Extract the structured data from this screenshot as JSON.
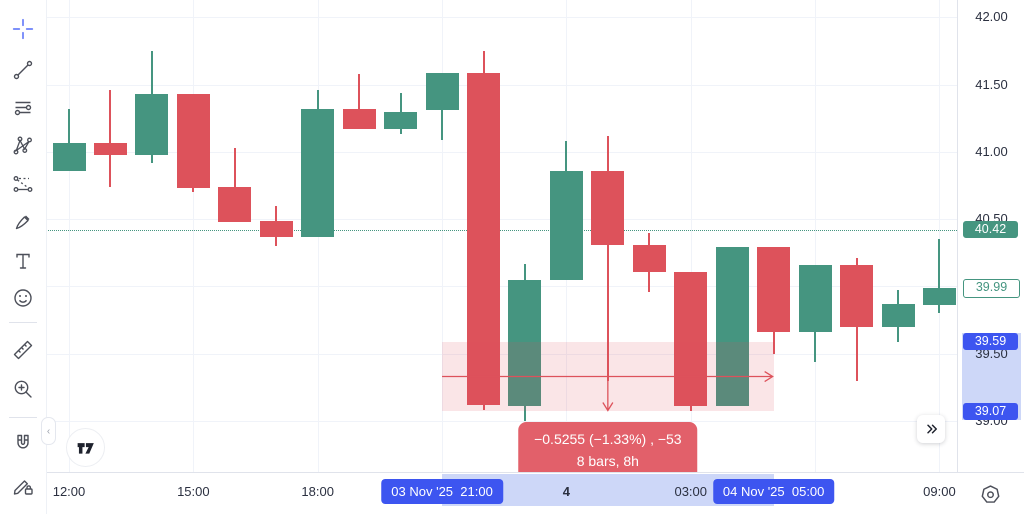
{
  "app": {
    "name": "tradingview-chart"
  },
  "colors": {
    "up": "#459580",
    "down": "#dd525b",
    "blue": "#3d55f0",
    "band": "#cdd7f8",
    "measure_fill": "rgba(221,82,91,0.15)",
    "measure_line": "#dd525b",
    "tooltip_bg": "#e2606a",
    "grid": "#f0f3f9",
    "border": "#e0e3eb",
    "icon": "#4c4f59",
    "icon_active": "#7d90fa",
    "logo": "#1e222d"
  },
  "toolbar": {
    "tools": [
      {
        "id": "crosshair",
        "selected": true
      },
      {
        "id": "trend-line",
        "selected": false
      },
      {
        "id": "fib-retracement",
        "selected": false
      },
      {
        "id": "xabcd-pattern",
        "selected": false
      },
      {
        "id": "projection",
        "selected": false
      },
      {
        "id": "brush",
        "selected": false
      },
      {
        "id": "text",
        "selected": false
      },
      {
        "id": "emoji",
        "selected": false
      },
      {
        "id": "measure",
        "selected": false
      },
      {
        "id": "zoom-in",
        "selected": false
      },
      {
        "id": "magnet",
        "selected": false
      },
      {
        "id": "lock-all-drawings",
        "selected": false
      }
    ]
  },
  "chart_data": {
    "type": "candlestick",
    "interval": "1h",
    "ylim": [
      38.62,
      42.13
    ],
    "grid": true,
    "candles": [
      {
        "t": "12:00",
        "o": 40.86,
        "h": 41.32,
        "l": 40.86,
        "c": 41.07
      },
      {
        "t": "13:00",
        "o": 41.07,
        "h": 41.46,
        "l": 40.74,
        "c": 40.98
      },
      {
        "t": "14:00",
        "o": 40.98,
        "h": 41.75,
        "l": 40.92,
        "c": 41.43
      },
      {
        "t": "15:00",
        "o": 41.43,
        "h": 41.43,
        "l": 40.7,
        "c": 40.73
      },
      {
        "t": "16:00",
        "o": 40.74,
        "h": 41.03,
        "l": 40.48,
        "c": 40.48
      },
      {
        "t": "17:00",
        "o": 40.49,
        "h": 40.6,
        "l": 40.3,
        "c": 40.37
      },
      {
        "t": "18:00",
        "o": 40.37,
        "h": 41.46,
        "l": 40.37,
        "c": 41.32
      },
      {
        "t": "19:00",
        "o": 41.32,
        "h": 41.58,
        "l": 41.17,
        "c": 41.17
      },
      {
        "t": "20:00",
        "o": 41.17,
        "h": 41.44,
        "l": 41.13,
        "c": 41.3
      },
      {
        "t": "21:00",
        "o": 41.31,
        "h": 41.59,
        "l": 41.09,
        "c": 41.59
      },
      {
        "t": "22:00",
        "o": 41.59,
        "h": 41.75,
        "l": 39.08,
        "c": 39.12
      },
      {
        "t": "23:00",
        "o": 39.11,
        "h": 40.17,
        "l": 39.0,
        "c": 40.05
      },
      {
        "t": "00:00",
        "o": 40.05,
        "h": 41.08,
        "l": 40.05,
        "c": 40.86
      },
      {
        "t": "01:00",
        "o": 40.86,
        "h": 41.12,
        "l": 39.3,
        "c": 40.31
      },
      {
        "t": "02:00",
        "o": 40.31,
        "h": 40.4,
        "l": 39.96,
        "c": 40.11
      },
      {
        "t": "03:00",
        "o": 40.11,
        "h": 40.11,
        "l": 39.07,
        "c": 39.11
      },
      {
        "t": "04:00",
        "o": 39.11,
        "h": 40.29,
        "l": 39.11,
        "c": 40.29
      },
      {
        "t": "05:00",
        "o": 40.29,
        "h": 40.29,
        "l": 39.5,
        "c": 39.66
      },
      {
        "t": "06:00",
        "o": 39.66,
        "h": 40.16,
        "l": 39.44,
        "c": 40.16
      },
      {
        "t": "07:00",
        "o": 40.16,
        "h": 40.21,
        "l": 39.3,
        "c": 39.7
      },
      {
        "t": "08:00",
        "o": 39.7,
        "h": 39.97,
        "l": 39.59,
        "c": 39.87
      },
      {
        "t": "09:00",
        "o": 39.86,
        "h": 40.35,
        "l": 39.8,
        "c": 39.99
      }
    ],
    "last_price": 39.99,
    "reference_price_line": 40.42
  },
  "price_axis": {
    "labels": [
      {
        "text": "42.00",
        "value": 42.0
      },
      {
        "text": "41.50",
        "value": 41.5
      },
      {
        "text": "41.00",
        "value": 41.0
      },
      {
        "text": "40.50",
        "value": 40.5
      },
      {
        "text": "40.00",
        "value": 40.0
      },
      {
        "text": "39.50",
        "value": 39.5
      },
      {
        "text": "39.00",
        "value": 39.0
      }
    ],
    "ref_price_badge": {
      "text": "40.42",
      "value": 40.42
    },
    "last_price_badge": {
      "text": "39.99",
      "value": 39.99
    },
    "selection_badges": [
      {
        "text": "39.59",
        "value": 39.59
      },
      {
        "text": "39.07",
        "value": 39.07
      }
    ]
  },
  "time_axis": {
    "grid_bars": [
      0,
      3,
      6,
      9,
      12,
      15,
      18,
      21
    ],
    "labels": [
      {
        "bar": 0,
        "text": "12:00",
        "bold": false
      },
      {
        "bar": 3,
        "text": "15:00",
        "bold": false
      },
      {
        "bar": 6,
        "text": "18:00",
        "bold": false
      },
      {
        "bar": 12,
        "text": "4",
        "bold": true
      },
      {
        "bar": 15,
        "text": "03:00",
        "bold": false
      },
      {
        "bar": 21,
        "text": "09:00",
        "bold": false
      }
    ],
    "badges": [
      {
        "bar": 9,
        "text": "03 Nov '25  21:00"
      },
      {
        "bar": 17,
        "text": "04 Nov '25  05:00"
      }
    ]
  },
  "measure": {
    "from_bar": 9,
    "to_bar": 17,
    "from_price": 39.59,
    "to_price": 39.07,
    "change": "−0.5255",
    "change_pct": "−1.33%",
    "ticks": "−53",
    "bars": 8,
    "duration": "8h",
    "tooltip_line1": "−0.5255 (−1.33%) , −53",
    "tooltip_line2": "8 bars, 8h"
  },
  "widgets": {
    "collapse_label": "‹"
  }
}
